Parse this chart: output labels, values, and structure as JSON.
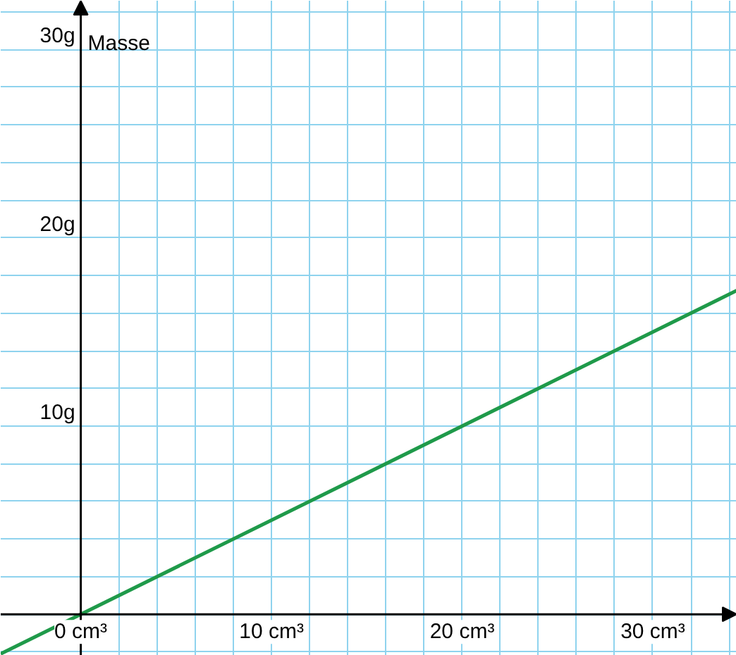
{
  "chart_data": {
    "type": "line",
    "ylabel": "Masse",
    "x": [
      -4.2,
      34.4
    ],
    "series": [
      {
        "color": "#1f9a4a",
        "values": [
          -2.1,
          17.2
        ]
      }
    ],
    "xlim": [
      -4.2,
      34.4
    ],
    "ylim": [
      -2.2,
      32.6
    ],
    "xticks": [
      {
        "value": 0,
        "label": "0 cm³"
      },
      {
        "value": 2,
        "label": null
      },
      {
        "value": 4,
        "label": null
      },
      {
        "value": 6,
        "label": null
      },
      {
        "value": 8,
        "label": null
      },
      {
        "value": 10,
        "label": "10 cm³"
      },
      {
        "value": 12,
        "label": null
      },
      {
        "value": 14,
        "label": null
      },
      {
        "value": 16,
        "label": null
      },
      {
        "value": 18,
        "label": null
      },
      {
        "value": 20,
        "label": "20 cm³"
      },
      {
        "value": 22,
        "label": null
      },
      {
        "value": 24,
        "label": null
      },
      {
        "value": 26,
        "label": null
      },
      {
        "value": 28,
        "label": null
      },
      {
        "value": 30,
        "label": "30 cm³"
      },
      {
        "value": 32,
        "label": null
      },
      {
        "value": 34,
        "label": null
      }
    ],
    "yticks": [
      {
        "value": -2,
        "label": null
      },
      {
        "value": 0,
        "label": null
      },
      {
        "value": 2,
        "label": null
      },
      {
        "value": 4,
        "label": null
      },
      {
        "value": 6,
        "label": null
      },
      {
        "value": 8,
        "label": null
      },
      {
        "value": 10,
        "label": "10g"
      },
      {
        "value": 12,
        "label": null
      },
      {
        "value": 14,
        "label": null
      },
      {
        "value": 16,
        "label": null
      },
      {
        "value": 18,
        "label": null
      },
      {
        "value": 20,
        "label": "20g"
      },
      {
        "value": 22,
        "label": null
      },
      {
        "value": 24,
        "label": null
      },
      {
        "value": 26,
        "label": null
      },
      {
        "value": 28,
        "label": null
      },
      {
        "value": 30,
        "label": "30g"
      },
      {
        "value": 32,
        "label": null
      }
    ],
    "grid": true,
    "line_style": "solid"
  }
}
